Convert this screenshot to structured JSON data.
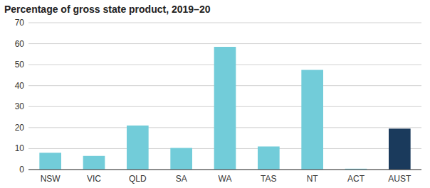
{
  "chart_data": {
    "type": "bar",
    "title": "Percentage of gross state product, 2019–20",
    "categories": [
      "NSW",
      "VIC",
      "QLD",
      "SA",
      "WA",
      "TAS",
      "NT",
      "ACT",
      "AUST"
    ],
    "values": [
      8.0,
      6.5,
      21.0,
      10.3,
      58.5,
      11.0,
      47.5,
      0.4,
      19.5
    ],
    "colors": [
      "#72ccd9",
      "#72ccd9",
      "#72ccd9",
      "#72ccd9",
      "#72ccd9",
      "#72ccd9",
      "#72ccd9",
      "#72ccd9",
      "#1a3a5c"
    ],
    "ylim": [
      0,
      70
    ],
    "yticks": [
      0,
      10,
      20,
      30,
      40,
      50,
      60,
      70
    ],
    "grid": true
  }
}
